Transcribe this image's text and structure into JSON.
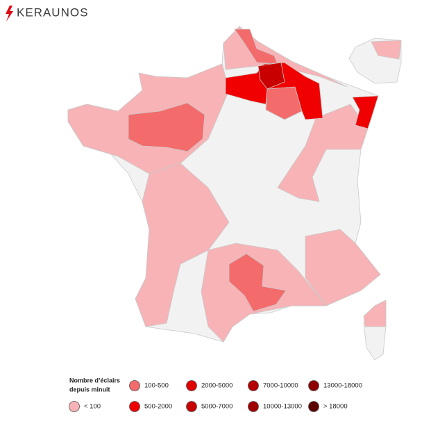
{
  "logo": {
    "text": "KERAUNOS"
  },
  "legend": {
    "title_lines": [
      "Nombre d’éclairs",
      "depuis minuit"
    ],
    "items": [
      {
        "label": "100-500",
        "color": "#f36b6b"
      },
      {
        "label": "2000-5000",
        "color": "#e00000"
      },
      {
        "label": "7000-10000",
        "color": "#b30000"
      },
      {
        "label": "13000-18000",
        "color": "#8e0000"
      },
      {
        "label": "< 100",
        "color": "#f7b3b6"
      },
      {
        "label": "500-2000",
        "color": "#f00000"
      },
      {
        "label": "5000-7000",
        "color": "#c80000"
      },
      {
        "label": "10000-13000",
        "color": "#a00000"
      },
      {
        "label": "> 18000",
        "color": "#5c0000"
      }
    ]
  }
}
